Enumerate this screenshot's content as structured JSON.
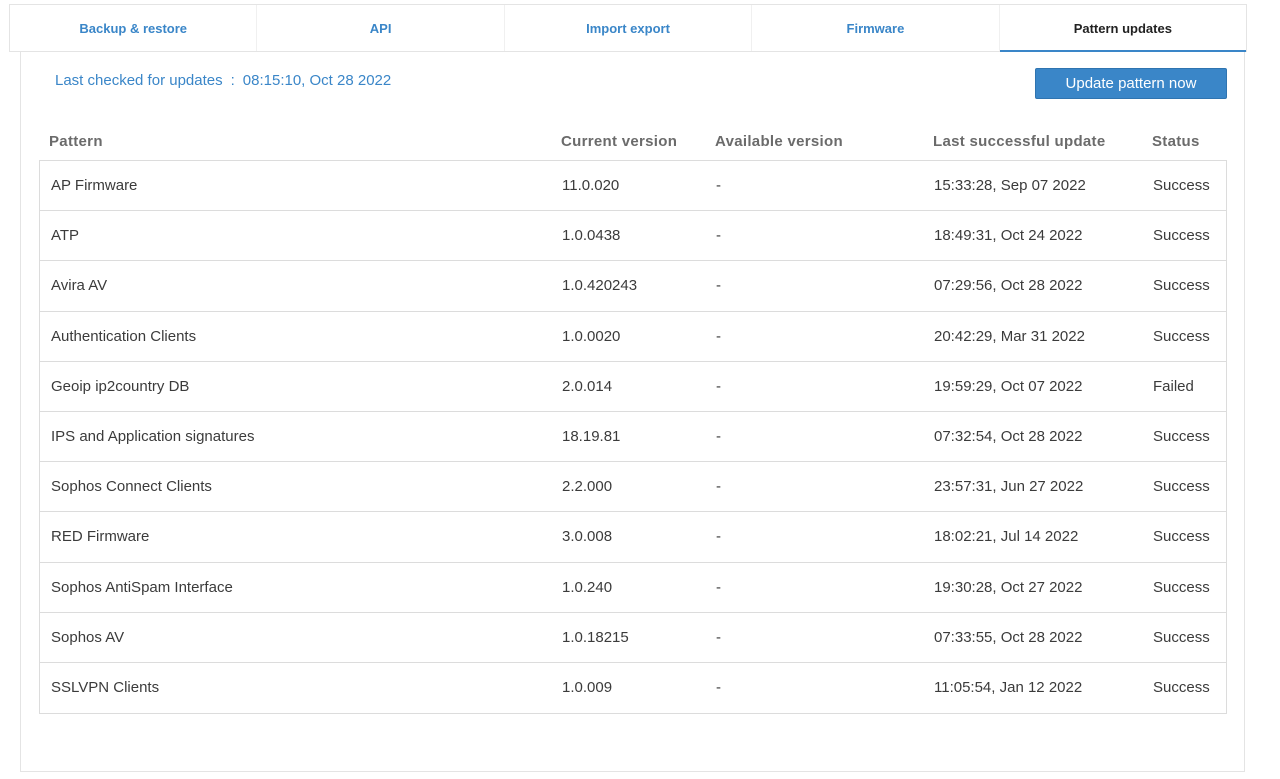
{
  "tabs": [
    {
      "label": "Backup & restore"
    },
    {
      "label": "API"
    },
    {
      "label": "Import export"
    },
    {
      "label": "Firmware"
    },
    {
      "label": "Pattern updates"
    }
  ],
  "last_checked": {
    "label": "Last checked for updates",
    "separator": ":",
    "value": "08:15:10, Oct 28 2022"
  },
  "update_button": {
    "label": "Update pattern now"
  },
  "table": {
    "headers": [
      "Pattern",
      "Current version",
      "Available version",
      "Last successful update",
      "Status"
    ],
    "rows": [
      {
        "pattern": "AP Firmware",
        "current": "11.0.020",
        "available": "-",
        "last": "15:33:28, Sep 07 2022",
        "status": "Success"
      },
      {
        "pattern": "ATP",
        "current": "1.0.0438",
        "available": "-",
        "last": "18:49:31, Oct 24 2022",
        "status": "Success"
      },
      {
        "pattern": "Avira AV",
        "current": "1.0.420243",
        "available": "-",
        "last": "07:29:56, Oct 28 2022",
        "status": "Success"
      },
      {
        "pattern": "Authentication Clients",
        "current": "1.0.0020",
        "available": "-",
        "last": "20:42:29, Mar 31 2022",
        "status": "Success"
      },
      {
        "pattern": "Geoip ip2country DB",
        "current": "2.0.014",
        "available": "-",
        "last": "19:59:29, Oct 07 2022",
        "status": "Failed"
      },
      {
        "pattern": "IPS and Application signatures",
        "current": "18.19.81",
        "available": "-",
        "last": "07:32:54, Oct 28 2022",
        "status": "Success"
      },
      {
        "pattern": "Sophos Connect Clients",
        "current": "2.2.000",
        "available": "-",
        "last": "23:57:31, Jun 27 2022",
        "status": "Success"
      },
      {
        "pattern": "RED Firmware",
        "current": "3.0.008",
        "available": "-",
        "last": "18:02:21, Jul 14 2022",
        "status": "Success"
      },
      {
        "pattern": "Sophos AntiSpam Interface",
        "current": "1.0.240",
        "available": "-",
        "last": "19:30:28, Oct 27 2022",
        "status": "Success"
      },
      {
        "pattern": "Sophos AV",
        "current": "1.0.18215",
        "available": "-",
        "last": "07:33:55, Oct 28 2022",
        "status": "Success"
      },
      {
        "pattern": "SSLVPN Clients",
        "current": "1.0.009",
        "available": "-",
        "last": "11:05:54, Jan 12 2022",
        "status": "Success"
      }
    ]
  },
  "colors": {
    "accent": "#3a86c8",
    "text": "#3b3b3b",
    "header_text": "#6b6b6b",
    "border": "#dcdcdc"
  }
}
